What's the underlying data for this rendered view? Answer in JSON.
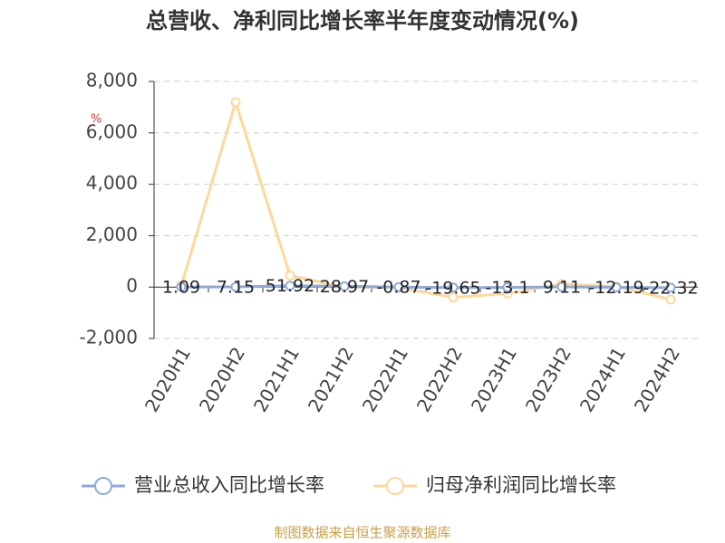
{
  "chart_data": {
    "type": "line",
    "title": "总营收、净利同比增长率半年度变动情况(%)",
    "y_unit": "%",
    "source": "制图数据来自恒生聚源数据库",
    "categories": [
      "2020H1",
      "2020H2",
      "2021H1",
      "2021H2",
      "2022H1",
      "2022H2",
      "2023H1",
      "2023H2",
      "2024H1",
      "2024H2"
    ],
    "series": [
      {
        "name": "营业总收入同比增长率",
        "color": "#8eaadc",
        "values": [
          1.09,
          7.15,
          51.92,
          28.97,
          -0.87,
          -19.65,
          -13.1,
          9.11,
          -12.19,
          -22.32
        ],
        "show_labels": true
      },
      {
        "name": "归母净利润同比增长率",
        "color": "#ffd899",
        "values": [
          50,
          7200,
          450,
          0,
          -20,
          -400,
          -250,
          120,
          20,
          -480
        ],
        "show_labels": false
      }
    ],
    "ylim": [
      -2000,
      8000
    ],
    "yticks": [
      {
        "value": -2000,
        "label": "-2,000"
      },
      0,
      {
        "value": 2000,
        "label": "2,000"
      },
      {
        "value": 4000,
        "label": "4,000"
      },
      {
        "value": 6000,
        "label": "6,000"
      },
      {
        "value": 8000,
        "label": "8,000"
      }
    ],
    "grid": true
  }
}
